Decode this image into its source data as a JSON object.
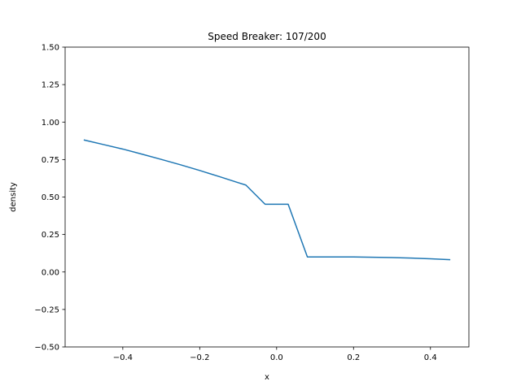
{
  "chart_data": {
    "type": "line",
    "title": "Speed Breaker: 107/200",
    "xlabel": "x",
    "ylabel": "density",
    "xlim": [
      -0.55,
      0.5
    ],
    "ylim": [
      -0.5,
      1.5
    ],
    "xticks": [
      -0.4,
      -0.2,
      0.0,
      0.2,
      0.4
    ],
    "xtick_labels": [
      "−0.4",
      "−0.2",
      "0.0",
      "0.2",
      "0.4"
    ],
    "yticks": [
      -0.5,
      -0.25,
      0.0,
      0.25,
      0.5,
      0.75,
      1.0,
      1.25,
      1.5
    ],
    "ytick_labels": [
      "−0.50",
      "−0.25",
      "0.00",
      "0.25",
      "0.50",
      "0.75",
      "1.00",
      "1.25",
      "1.50"
    ],
    "grid": false,
    "series": [
      {
        "color": "#1f77b4",
        "x": [
          -0.5,
          -0.45,
          -0.4,
          -0.35,
          -0.3,
          -0.25,
          -0.2,
          -0.15,
          -0.1,
          -0.08,
          -0.03,
          0.03,
          0.08,
          0.1,
          0.15,
          0.2,
          0.25,
          0.3,
          0.35,
          0.4,
          0.45
        ],
        "y": [
          0.88,
          0.85,
          0.82,
          0.786,
          0.751,
          0.715,
          0.677,
          0.637,
          0.596,
          0.58,
          0.452,
          0.452,
          0.1,
          0.1,
          0.1,
          0.1,
          0.098,
          0.096,
          0.093,
          0.088,
          0.082
        ]
      }
    ]
  }
}
